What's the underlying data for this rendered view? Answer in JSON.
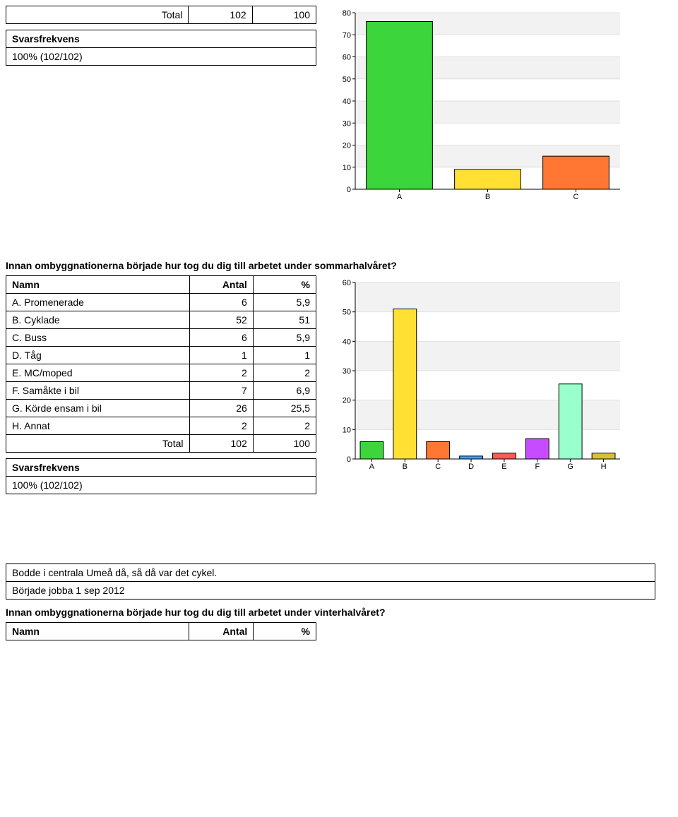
{
  "table1": {
    "row": {
      "label": "Total",
      "antal": "102",
      "pct": "100"
    }
  },
  "freq1": {
    "title": "Svarsfrekvens",
    "value": "100% (102/102)"
  },
  "chart1": {
    "type": "bar",
    "categories": [
      "A",
      "B",
      "C"
    ],
    "values": [
      76,
      9,
      15
    ],
    "bar_colors": [
      "#3cd63c",
      "#ffe033",
      "#ff7733"
    ],
    "ylim": [
      0,
      80
    ],
    "ytick_step": 10,
    "background_color": "#ffffff",
    "grid_color": "#e0e0e0",
    "bar_border": "#000000",
    "bar_width": 0.75,
    "tick_fontsize": 11
  },
  "question1": "Innan ombyggnationerna började hur tog du dig till arbetet under sommarhalvåret?",
  "table2": {
    "header": {
      "c1": "Namn",
      "c2": "Antal",
      "c3": "%"
    },
    "rows": [
      {
        "c1": "A. Promenerade",
        "c2": "6",
        "c3": "5,9"
      },
      {
        "c1": "B. Cyklade",
        "c2": "52",
        "c3": "51"
      },
      {
        "c1": "C. Buss",
        "c2": "6",
        "c3": "5,9"
      },
      {
        "c1": "D. Tåg",
        "c2": "1",
        "c3": "1"
      },
      {
        "c1": "E. MC/moped",
        "c2": "2",
        "c3": "2"
      },
      {
        "c1": "F. Samåkte i bil",
        "c2": "7",
        "c3": "6,9"
      },
      {
        "c1": "G. Körde ensam i bil",
        "c2": "26",
        "c3": "25,5"
      },
      {
        "c1": "H. Annat",
        "c2": "2",
        "c3": "2"
      }
    ],
    "total": {
      "c1": "Total",
      "c2": "102",
      "c3": "100"
    }
  },
  "freq2": {
    "title": "Svarsfrekvens",
    "value": "100% (102/102)"
  },
  "chart2": {
    "type": "bar",
    "categories": [
      "A",
      "B",
      "C",
      "D",
      "E",
      "F",
      "G",
      "H"
    ],
    "values": [
      5.9,
      51,
      5.9,
      1,
      2,
      6.9,
      25.5,
      2
    ],
    "bar_colors": [
      "#3cd63c",
      "#ffe033",
      "#ff7733",
      "#3da0ff",
      "#ff5959",
      "#c74cff",
      "#99ffcc",
      "#d6c233"
    ],
    "ylim": [
      0,
      60
    ],
    "ytick_step": 10,
    "background_color": "#ffffff",
    "grid_color": "#e0e0e0",
    "bar_border": "#000000",
    "bar_width": 0.7,
    "tick_fontsize": 11
  },
  "comments": {
    "rows": [
      "Bodde i centrala Umeå då, så då var det cykel.",
      "Började jobba 1 sep 2012"
    ]
  },
  "question2": "Innan ombyggnationerna började hur tog du dig till arbetet under vinterhalvåret?",
  "table3": {
    "header": {
      "c1": "Namn",
      "c2": "Antal",
      "c3": "%"
    }
  }
}
